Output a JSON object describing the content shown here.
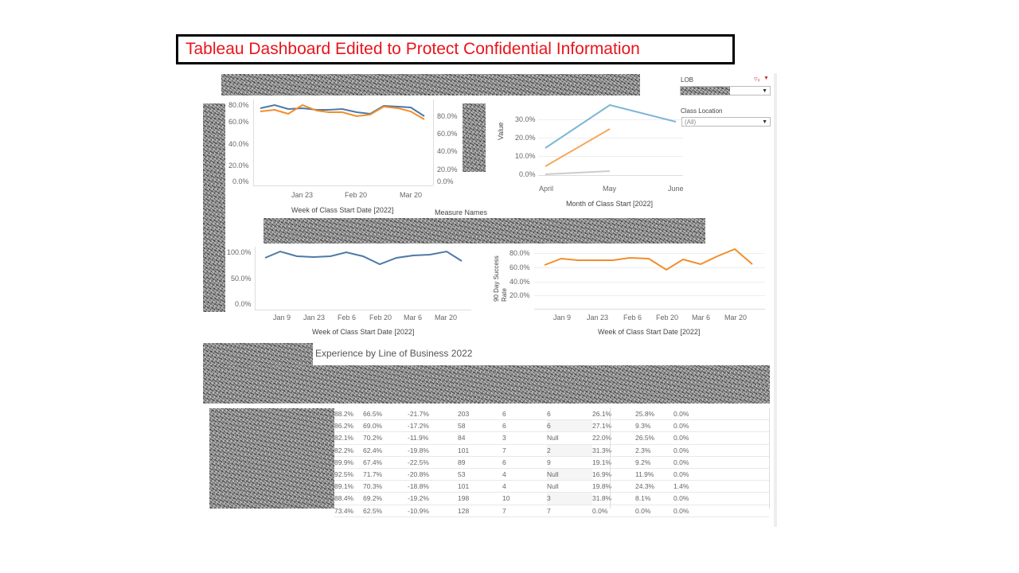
{
  "banner": {
    "text": "Tableau Dashboard Edited to Protect Confidential Information"
  },
  "filters": {
    "lob": {
      "label": "LOB",
      "value": ""
    },
    "class_location": {
      "label": "Class Location",
      "value": "(All)"
    }
  },
  "charts": {
    "top_left": {
      "y_ticks": [
        "80.0%",
        "60.0%",
        "40.0%",
        "20.0%",
        "0.0%"
      ],
      "y2_ticks": [
        "80.0%",
        "60.0%",
        "40.0%",
        "20.0%",
        "0.0%"
      ],
      "x_ticks": [
        "Jan 23",
        "Feb 20",
        "Mar 20"
      ],
      "x_label": "Week of Class Start Date [2022]",
      "legend_label": "Measure Names"
    },
    "top_right": {
      "y_ticks": [
        "30.0%",
        "20.0%",
        "10.0%",
        "0.0%"
      ],
      "x_ticks": [
        "April",
        "May",
        "June"
      ],
      "y_label": "Value",
      "x_label": "Month of Class Start [2022]"
    },
    "mid_left": {
      "y_ticks": [
        "100.0%",
        "50.0%",
        "0.0%"
      ],
      "x_ticks": [
        "Jan 9",
        "Jan 23",
        "Feb 6",
        "Feb 20",
        "Mar 6",
        "Mar 20"
      ],
      "x_label": "Week of Class Start Date [2022]"
    },
    "mid_right": {
      "y_ticks": [
        "80.0%",
        "60.0%",
        "40.0%",
        "20.0%"
      ],
      "x_ticks": [
        "Jan 9",
        "Jan 23",
        "Feb 6",
        "Feb 20",
        "Mar 6",
        "Mar 20"
      ],
      "y_label": "90 Day Success Rate",
      "x_label": "Week of Class Start Date [2022]"
    }
  },
  "colors": {
    "blue": "#4e79a7",
    "orange": "#f28e2b",
    "light_blue": "#7fb7d6",
    "gray": "#cccccc",
    "banner_red": "#e8141b"
  },
  "experience": {
    "title": "Experience by Line of Business 2022",
    "rows": [
      [
        "88.2%",
        "66.5%",
        "-21.7%",
        "203",
        "6",
        "6",
        "26.1%",
        "25.8%",
        "0.0%"
      ],
      [
        "86.2%",
        "69.0%",
        "-17.2%",
        "58",
        "6",
        "6",
        "27.1%",
        "9.3%",
        "0.0%"
      ],
      [
        "82.1%",
        "70.2%",
        "-11.9%",
        "84",
        "3",
        "Null",
        "22.0%",
        "26.5%",
        "0.0%"
      ],
      [
        "82.2%",
        "62.4%",
        "-19.8%",
        "101",
        "7",
        "2",
        "31.3%",
        "2.3%",
        "0.0%"
      ],
      [
        "89.9%",
        "67.4%",
        "-22.5%",
        "89",
        "6",
        "9",
        "19.1%",
        "9.2%",
        "0.0%"
      ],
      [
        "92.5%",
        "71.7%",
        "-20.8%",
        "53",
        "4",
        "Null",
        "16.9%",
        "11.9%",
        "0.0%"
      ],
      [
        "89.1%",
        "70.3%",
        "-18.8%",
        "101",
        "4",
        "Null",
        "19.8%",
        "24.3%",
        "1.4%"
      ],
      [
        "88.4%",
        "69.2%",
        "-19.2%",
        "198",
        "10",
        "3",
        "31.8%",
        "8.1%",
        "0.0%"
      ],
      [
        "73.4%",
        "62.5%",
        "-10.9%",
        "128",
        "7",
        "7",
        "0.0%",
        "0.0%",
        "0.0%"
      ]
    ]
  }
}
